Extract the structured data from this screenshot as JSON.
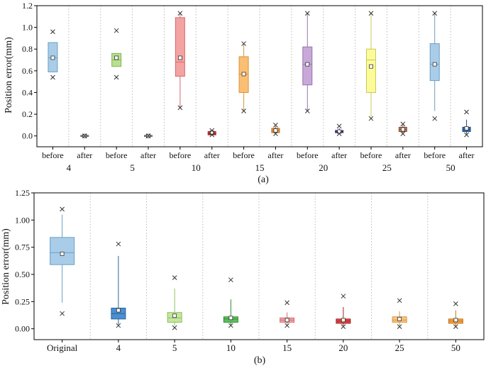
{
  "chart_data": [
    {
      "type": "box",
      "panel_label": "(a)",
      "ylabel": "Position error(mm)",
      "ylim": [
        -0.1,
        1.2
      ],
      "yticks": [
        0.0,
        0.2,
        0.4,
        0.6,
        0.8,
        1.0,
        1.2
      ],
      "ytick_labels": [
        "0.0",
        "0.2",
        "0.4",
        "0.6",
        "0.8",
        "1.0",
        "1.2"
      ],
      "groups": [
        "4",
        "5",
        "10",
        "15",
        "20",
        "25",
        "50"
      ],
      "sub_labels": [
        "before",
        "after"
      ],
      "boxes": [
        {
          "group": "4",
          "sub": "before",
          "q1": 0.59,
          "median": 0.72,
          "q3": 0.86,
          "mean": 0.72,
          "wlo": 0.59,
          "whi": 0.86,
          "min": 0.54,
          "max": 0.96,
          "color": "#a9cde8",
          "edge": "#6a9fc4"
        },
        {
          "group": "4",
          "sub": "after",
          "q1": 0.0,
          "median": 0.0,
          "q3": 0.0,
          "mean": 0.0,
          "wlo": 0.0,
          "whi": 0.0,
          "min": 0.0,
          "max": 0.0,
          "color": "#9e9e9e",
          "edge": "#666666"
        },
        {
          "group": "5",
          "sub": "before",
          "q1": 0.64,
          "median": 0.7,
          "q3": 0.76,
          "mean": 0.72,
          "wlo": 0.64,
          "whi": 0.76,
          "min": 0.54,
          "max": 0.97,
          "color": "#b8df8e",
          "edge": "#7fb65a"
        },
        {
          "group": "5",
          "sub": "after",
          "q1": 0.0,
          "median": 0.0,
          "q3": 0.0,
          "mean": 0.0,
          "wlo": 0.0,
          "whi": 0.0,
          "min": 0.0,
          "max": 0.0,
          "color": "#9e9e9e",
          "edge": "#666666"
        },
        {
          "group": "10",
          "sub": "before",
          "q1": 0.55,
          "median": 0.68,
          "q3": 1.09,
          "mean": 0.72,
          "wlo": 0.26,
          "whi": 1.13,
          "min": 0.26,
          "max": 1.13,
          "color": "#f4a3a3",
          "edge": "#d46a6a"
        },
        {
          "group": "10",
          "sub": "after",
          "q1": 0.01,
          "median": 0.02,
          "q3": 0.04,
          "mean": 0.03,
          "wlo": 0.01,
          "whi": 0.04,
          "min": 0.01,
          "max": 0.05,
          "color": "#e23b3b",
          "edge": "#a31d1d"
        },
        {
          "group": "15",
          "sub": "before",
          "q1": 0.4,
          "median": 0.57,
          "q3": 0.73,
          "mean": 0.57,
          "wlo": 0.23,
          "whi": 0.85,
          "min": 0.23,
          "max": 0.85,
          "color": "#fbbf73",
          "edge": "#d9923a"
        },
        {
          "group": "15",
          "sub": "after",
          "q1": 0.03,
          "median": 0.05,
          "q3": 0.07,
          "mean": 0.05,
          "wlo": 0.02,
          "whi": 0.09,
          "min": 0.02,
          "max": 0.1,
          "color": "#f39a3c",
          "edge": "#b56a1f"
        },
        {
          "group": "20",
          "sub": "before",
          "q1": 0.47,
          "median": 0.66,
          "q3": 0.82,
          "mean": 0.66,
          "wlo": 0.23,
          "whi": 1.13,
          "min": 0.23,
          "max": 1.13,
          "color": "#c7a8d8",
          "edge": "#9574ae"
        },
        {
          "group": "20",
          "sub": "after",
          "q1": 0.03,
          "median": 0.04,
          "q3": 0.05,
          "mean": 0.04,
          "wlo": 0.02,
          "whi": 0.07,
          "min": 0.02,
          "max": 0.09,
          "color": "#6a4a9c",
          "edge": "#3f2670"
        },
        {
          "group": "25",
          "sub": "before",
          "q1": 0.4,
          "median": 0.7,
          "q3": 0.8,
          "mean": 0.64,
          "wlo": 0.16,
          "whi": 1.13,
          "min": 0.16,
          "max": 1.13,
          "color": "#fbfb9a",
          "edge": "#c9c95a"
        },
        {
          "group": "25",
          "sub": "after",
          "q1": 0.04,
          "median": 0.06,
          "q3": 0.08,
          "mean": 0.06,
          "wlo": 0.02,
          "whi": 0.1,
          "min": 0.02,
          "max": 0.11,
          "color": "#c8764e",
          "edge": "#8f4f2c"
        },
        {
          "group": "50",
          "sub": "before",
          "q1": 0.51,
          "median": 0.66,
          "q3": 0.85,
          "mean": 0.66,
          "wlo": 0.23,
          "whi": 1.13,
          "min": 0.16,
          "max": 1.13,
          "color": "#a9cde8",
          "edge": "#6a9fc4"
        },
        {
          "group": "50",
          "sub": "after",
          "q1": 0.04,
          "median": 0.06,
          "q3": 0.08,
          "mean": 0.07,
          "wlo": 0.02,
          "whi": 0.15,
          "min": 0.01,
          "max": 0.22,
          "color": "#2f6fb0",
          "edge": "#1d4a7a"
        }
      ]
    },
    {
      "type": "box",
      "panel_label": "(b)",
      "ylabel": "Position error(mm)",
      "ylim": [
        -0.1,
        1.25
      ],
      "yticks": [
        0.0,
        0.25,
        0.5,
        0.75,
        1.0,
        1.25
      ],
      "ytick_labels": [
        "0.00",
        "0.25",
        "0.50",
        "0.75",
        "1.00",
        "1.25"
      ],
      "categories": [
        "Original",
        "4",
        "5",
        "10",
        "15",
        "20",
        "25",
        "50"
      ],
      "boxes": [
        {
          "category": "Original",
          "q1": 0.59,
          "median": 0.7,
          "q3": 0.84,
          "mean": 0.69,
          "wlo": 0.24,
          "whi": 1.05,
          "min": 0.14,
          "max": 1.1,
          "color": "#a9cde8",
          "edge": "#6a9fc4"
        },
        {
          "category": "4",
          "q1": 0.09,
          "median": 0.14,
          "q3": 0.19,
          "mean": 0.17,
          "wlo": 0.04,
          "whi": 0.67,
          "min": 0.03,
          "max": 0.78,
          "color": "#4a8fd0",
          "edge": "#2b6399"
        },
        {
          "category": "5",
          "q1": 0.06,
          "median": 0.1,
          "q3": 0.15,
          "mean": 0.12,
          "wlo": 0.03,
          "whi": 0.37,
          "min": 0.01,
          "max": 0.47,
          "color": "#c5e69f",
          "edge": "#8fbf5f"
        },
        {
          "category": "10",
          "q1": 0.06,
          "median": 0.09,
          "q3": 0.11,
          "mean": 0.1,
          "wlo": 0.03,
          "whi": 0.27,
          "min": 0.03,
          "max": 0.45,
          "color": "#5cc25c",
          "edge": "#318a31"
        },
        {
          "category": "15",
          "q1": 0.06,
          "median": 0.08,
          "q3": 0.1,
          "mean": 0.08,
          "wlo": 0.04,
          "whi": 0.15,
          "min": 0.03,
          "max": 0.24,
          "color": "#f5a3a3",
          "edge": "#cf6f6f"
        },
        {
          "category": "20",
          "q1": 0.05,
          "median": 0.07,
          "q3": 0.09,
          "mean": 0.08,
          "wlo": 0.03,
          "whi": 0.2,
          "min": 0.02,
          "max": 0.3,
          "color": "#e04848",
          "edge": "#a02525"
        },
        {
          "category": "25",
          "q1": 0.06,
          "median": 0.08,
          "q3": 0.11,
          "mean": 0.09,
          "wlo": 0.03,
          "whi": 0.16,
          "min": 0.02,
          "max": 0.26,
          "color": "#fcc57f",
          "edge": "#d69540"
        },
        {
          "category": "50",
          "q1": 0.05,
          "median": 0.07,
          "q3": 0.09,
          "mean": 0.08,
          "wlo": 0.02,
          "whi": 0.17,
          "min": 0.02,
          "max": 0.23,
          "color": "#f5a246",
          "edge": "#c0741e"
        }
      ]
    }
  ]
}
